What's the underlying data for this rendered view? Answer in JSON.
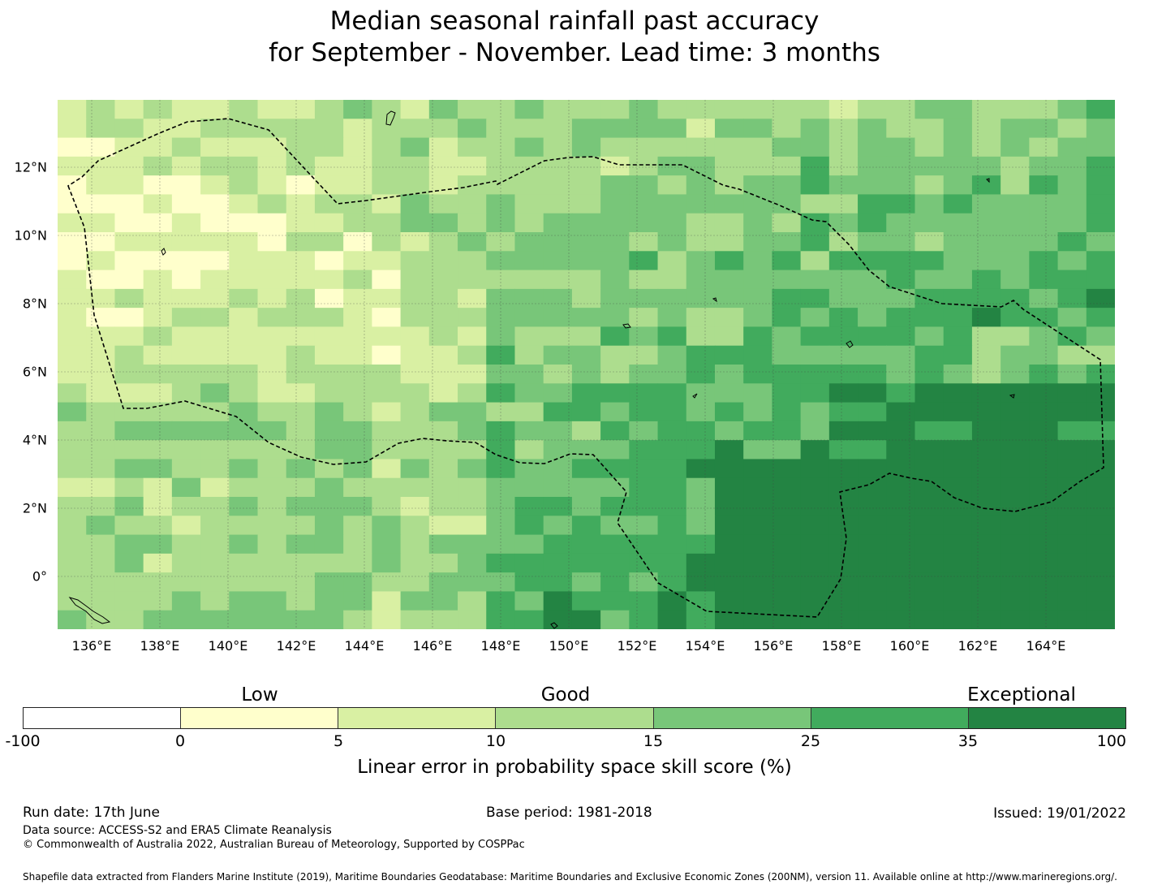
{
  "title": {
    "line1": "Median seasonal rainfall past accuracy",
    "line2": "for September - November. Lead time: 3 months"
  },
  "map": {
    "lon_labels": [
      "136°E",
      "138°E",
      "140°E",
      "142°E",
      "144°E",
      "146°E",
      "148°E",
      "150°E",
      "152°E",
      "154°E",
      "156°E",
      "158°E",
      "160°E",
      "162°E",
      "164°E"
    ],
    "lat_labels": [
      "12°N",
      "10°N",
      "8°N",
      "6°N",
      "4°N",
      "2°N",
      "0°"
    ],
    "grid_columns": 37,
    "grid_rows": 28,
    "category_labels": {
      "low": "Low",
      "good": "Good",
      "exceptional": "Exceptional"
    },
    "palette": [
      "#ffffff",
      "#ffffcc",
      "#d9f0a3",
      "#addd8e",
      "#78c679",
      "#41ab5d",
      "#238443"
    ],
    "eez_line_color": "#000000"
  },
  "colorbar": {
    "ticks": [
      "-100",
      "0",
      "5",
      "10",
      "15",
      "25",
      "35",
      "100"
    ],
    "label": "Linear error in probability space skill score (%)"
  },
  "footer": {
    "run_date": "Run date: 17th June",
    "base_period": "Base period: 1981-2018",
    "issued": "Issued: 19/01/2022",
    "data_source": "Data source: ACCESS-S2 and ERA5 Climate Reanalysis",
    "copyright": "© Commonwealth of Australia 2022, Australian Bureau of Meteorology, Supported by COSPPac",
    "shapefile": "Shapefile data extracted from Flanders Marine Institute (2019), Maritime Boundaries Geodatabase: Maritime Boundaries and Exclusive Economic Zones (200NM), version 11. Available online at http://www.marineregions.org/."
  }
}
